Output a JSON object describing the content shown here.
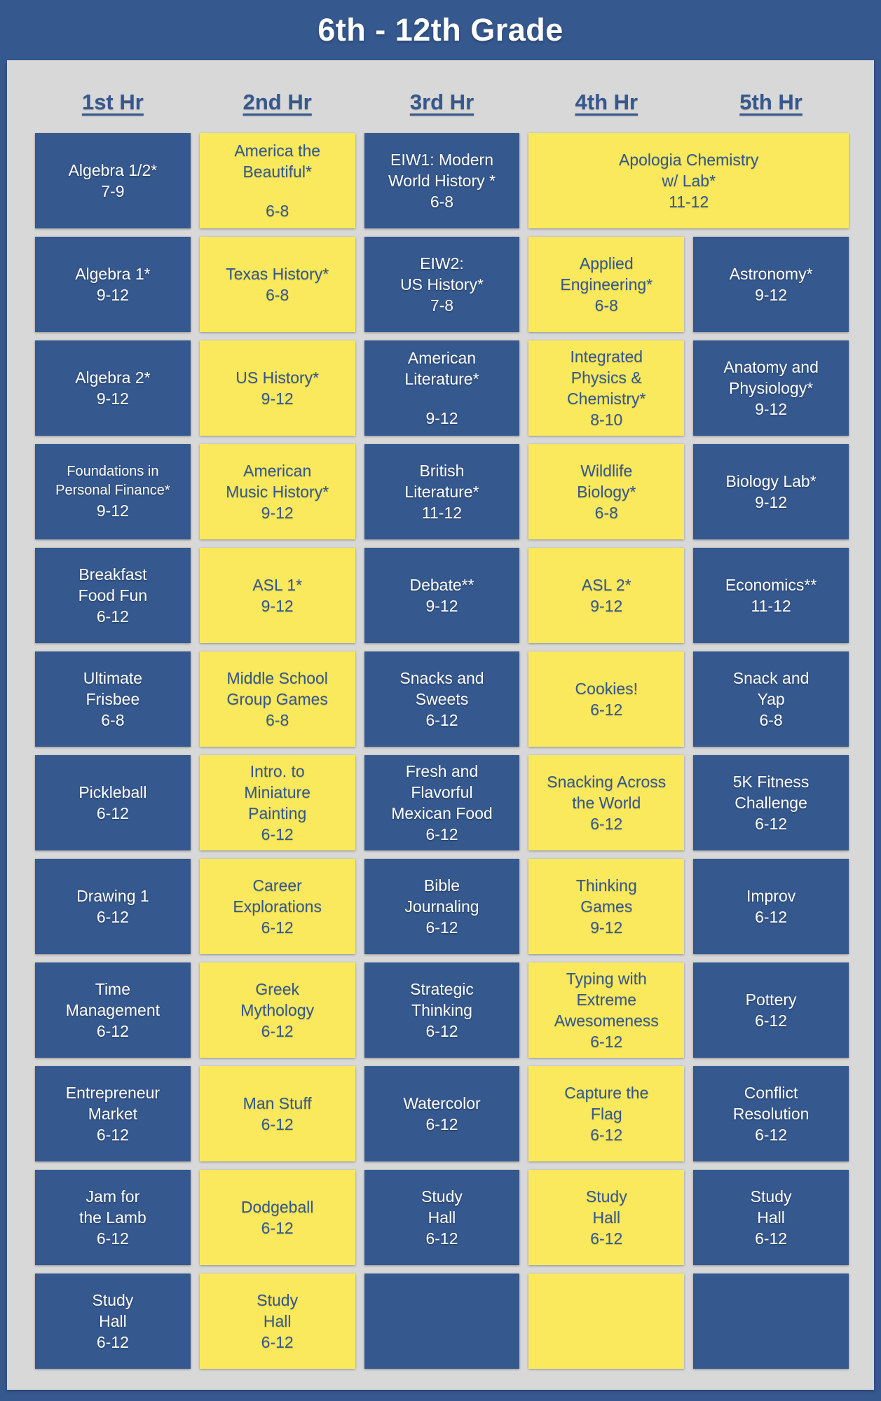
{
  "title": "6th - 12th Grade",
  "columns": [
    "1st Hr",
    "2nd Hr",
    "3rd Hr",
    "4th Hr",
    "5th Hr"
  ],
  "colors": {
    "frame_blue": "#35588E",
    "cell_blue": "#35588E",
    "cell_yellow": "#FAE95D",
    "panel_gray": "#D8D8D8",
    "text_on_blue": "#FFFFFF",
    "text_on_yellow": "#35588E"
  },
  "schedule": [
    [
      {
        "name": "Algebra 1/2*",
        "grades": "7-9",
        "color": "blue"
      },
      {
        "name": "America the\nBeautiful*",
        "grades": "6-8",
        "color": "yellow",
        "gap": true
      },
      {
        "name": "EIW1: Modern\nWorld History *",
        "grades": "6-8",
        "color": "blue"
      },
      {
        "name": "Apologia Chemistry\nw/ Lab*",
        "grades": "11-12",
        "color": "yellow",
        "span": 2
      }
    ],
    [
      {
        "name": "Algebra 1*",
        "grades": "9-12",
        "color": "blue"
      },
      {
        "name": "Texas History*",
        "grades": "6-8",
        "color": "yellow"
      },
      {
        "name": "EIW2:\nUS History*",
        "grades": "7-8",
        "color": "blue"
      },
      {
        "name": "Applied\nEngineering*",
        "grades": "6-8",
        "color": "yellow"
      },
      {
        "name": "Astronomy*",
        "grades": "9-12",
        "color": "blue"
      }
    ],
    [
      {
        "name": "Algebra 2*",
        "grades": "9-12",
        "color": "blue"
      },
      {
        "name": "US History*",
        "grades": "9-12",
        "color": "yellow"
      },
      {
        "name": "American\nLiterature*",
        "grades": "9-12",
        "color": "blue",
        "gap": true
      },
      {
        "name": "Integrated\nPhysics &\nChemistry*",
        "grades": "8-10",
        "color": "yellow"
      },
      {
        "name": "Anatomy and\nPhysiology*",
        "grades": "9-12",
        "color": "blue"
      }
    ],
    [
      {
        "name": "Foundations in\nPersonal Finance*",
        "grades": "9-12",
        "color": "blue",
        "small": true
      },
      {
        "name": "American\nMusic History*",
        "grades": "9-12",
        "color": "yellow"
      },
      {
        "name": "British\nLiterature*",
        "grades": "11-12",
        "color": "blue"
      },
      {
        "name": "Wildlife\nBiology*",
        "grades": "6-8",
        "color": "yellow"
      },
      {
        "name": "Biology Lab*",
        "grades": "9-12",
        "color": "blue"
      }
    ],
    [
      {
        "name": "Breakfast\nFood Fun",
        "grades": "6-12",
        "color": "blue"
      },
      {
        "name": "ASL 1*",
        "grades": "9-12",
        "color": "yellow"
      },
      {
        "name": "Debate**",
        "grades": "9-12",
        "color": "blue"
      },
      {
        "name": "ASL 2*",
        "grades": "9-12",
        "color": "yellow"
      },
      {
        "name": "Economics**",
        "grades": "11-12",
        "color": "blue"
      }
    ],
    [
      {
        "name": "Ultimate\nFrisbee",
        "grades": "6-8",
        "color": "blue"
      },
      {
        "name": "Middle School\nGroup Games",
        "grades": "6-8",
        "color": "yellow"
      },
      {
        "name": "Snacks and\nSweets",
        "grades": "6-12",
        "color": "blue"
      },
      {
        "name": "Cookies!",
        "grades": "6-12",
        "color": "yellow"
      },
      {
        "name": "Snack and\nYap",
        "grades": "6-8",
        "color": "blue"
      }
    ],
    [
      {
        "name": "Pickleball",
        "grades": "6-12",
        "color": "blue"
      },
      {
        "name": "Intro. to\nMiniature\nPainting",
        "grades": "6-12",
        "color": "yellow"
      },
      {
        "name": "Fresh and\nFlavorful\nMexican Food",
        "grades": "6-12",
        "color": "blue"
      },
      {
        "name": "Snacking Across\nthe World",
        "grades": "6-12",
        "color": "yellow"
      },
      {
        "name": "5K Fitness\nChallenge",
        "grades": "6-12",
        "color": "blue"
      }
    ],
    [
      {
        "name": "Drawing 1",
        "grades": "6-12",
        "color": "blue"
      },
      {
        "name": "Career\nExplorations",
        "grades": "6-12",
        "color": "yellow"
      },
      {
        "name": "Bible\nJournaling",
        "grades": "6-12",
        "color": "blue"
      },
      {
        "name": "Thinking\nGames",
        "grades": "9-12",
        "color": "yellow"
      },
      {
        "name": "Improv",
        "grades": "6-12",
        "color": "blue"
      }
    ],
    [
      {
        "name": "Time\nManagement",
        "grades": "6-12",
        "color": "blue"
      },
      {
        "name": "Greek\nMythology",
        "grades": "6-12",
        "color": "yellow"
      },
      {
        "name": "Strategic\nThinking",
        "grades": "6-12",
        "color": "blue"
      },
      {
        "name": "Typing with\nExtreme\nAwesomeness",
        "grades": "6-12",
        "color": "yellow"
      },
      {
        "name": "Pottery",
        "grades": "6-12",
        "color": "blue"
      }
    ],
    [
      {
        "name": "Entrepreneur\nMarket",
        "grades": "6-12",
        "color": "blue"
      },
      {
        "name": "Man Stuff",
        "grades": "6-12",
        "color": "yellow"
      },
      {
        "name": "Watercolor",
        "grades": "6-12",
        "color": "blue"
      },
      {
        "name": "Capture the\nFlag",
        "grades": "6-12",
        "color": "yellow"
      },
      {
        "name": "Conflict\nResolution",
        "grades": "6-12",
        "color": "blue"
      }
    ],
    [
      {
        "name": "Jam for\nthe Lamb",
        "grades": "6-12",
        "color": "blue"
      },
      {
        "name": "Dodgeball",
        "grades": "6-12",
        "color": "yellow"
      },
      {
        "name": "Study\nHall",
        "grades": "6-12",
        "color": "blue"
      },
      {
        "name": "Study\nHall",
        "grades": "6-12",
        "color": "yellow"
      },
      {
        "name": "Study\nHall",
        "grades": "6-12",
        "color": "blue"
      }
    ],
    [
      {
        "name": "Study\nHall",
        "grades": "6-12",
        "color": "blue"
      },
      {
        "name": "Study\nHall",
        "grades": "6-12",
        "color": "yellow"
      },
      {
        "name": "",
        "grades": "",
        "color": "blue"
      },
      {
        "name": "",
        "grades": "",
        "color": "yellow"
      },
      {
        "name": "",
        "grades": "",
        "color": "blue"
      }
    ]
  ]
}
